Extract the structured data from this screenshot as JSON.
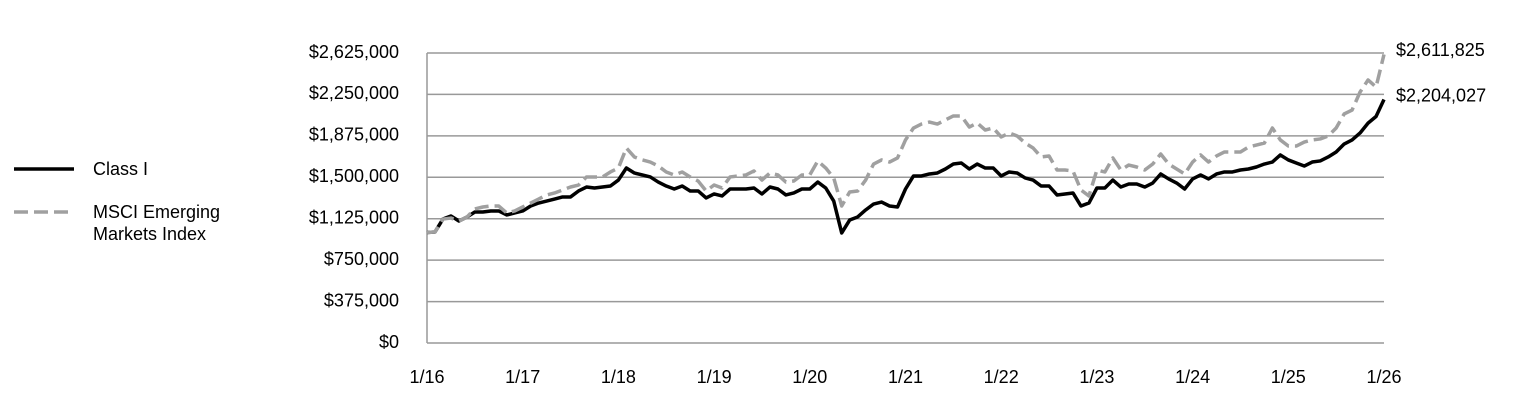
{
  "chart_data": {
    "type": "line",
    "categories": [
      "1/16",
      null,
      null,
      null,
      null,
      null,
      null,
      null,
      null,
      null,
      null,
      null,
      "1/17",
      null,
      null,
      null,
      null,
      null,
      null,
      null,
      null,
      null,
      null,
      null,
      "1/18",
      null,
      null,
      null,
      null,
      null,
      null,
      null,
      null,
      null,
      null,
      null,
      "1/19",
      null,
      null,
      null,
      null,
      null,
      null,
      null,
      null,
      null,
      null,
      null,
      "1/20",
      null,
      null,
      null,
      null,
      null,
      null,
      null,
      null,
      null,
      null,
      null,
      "1/21",
      null,
      null,
      null,
      null,
      null,
      null,
      null,
      null,
      null,
      null,
      null,
      "1/22",
      null,
      null,
      null,
      null,
      null,
      null,
      null,
      null,
      null,
      null,
      null,
      "1/23",
      null,
      null,
      null,
      null,
      null,
      null,
      null,
      null,
      null,
      null,
      null,
      "1/24",
      null,
      null,
      null,
      null,
      null,
      null,
      null,
      null,
      null,
      null,
      null,
      "1/25",
      null,
      null,
      null,
      null,
      null,
      null,
      null,
      null,
      null,
      null,
      null,
      "1/26"
    ],
    "series": [
      {
        "name": "Class I",
        "color": "#000000",
        "dash": false,
        "values": [
          1000000,
          1005000,
          1122000,
          1150000,
          1104000,
          1140000,
          1186000,
          1186000,
          1195000,
          1195000,
          1159000,
          1177000,
          1195000,
          1240000,
          1267000,
          1285000,
          1303000,
          1322000,
          1322000,
          1376000,
          1412000,
          1403000,
          1412000,
          1421000,
          1475000,
          1584000,
          1539000,
          1521000,
          1503000,
          1457000,
          1421000,
          1394000,
          1421000,
          1376000,
          1376000,
          1313000,
          1349000,
          1331000,
          1394000,
          1394000,
          1394000,
          1403000,
          1349000,
          1412000,
          1394000,
          1340000,
          1358000,
          1394000,
          1394000,
          1457000,
          1403000,
          1285000,
          996000,
          1113000,
          1141000,
          1204000,
          1258000,
          1276000,
          1240000,
          1231000,
          1394000,
          1512000,
          1512000,
          1530000,
          1539000,
          1575000,
          1620000,
          1629000,
          1575000,
          1620000,
          1584000,
          1584000,
          1512000,
          1548000,
          1539000,
          1494000,
          1475000,
          1421000,
          1421000,
          1340000,
          1349000,
          1358000,
          1240000,
          1267000,
          1403000,
          1403000,
          1475000,
          1412000,
          1439000,
          1439000,
          1412000,
          1448000,
          1530000,
          1485000,
          1448000,
          1394000,
          1485000,
          1521000,
          1485000,
          1530000,
          1548000,
          1548000,
          1566000,
          1575000,
          1593000,
          1620000,
          1638000,
          1702000,
          1657000,
          1629000,
          1602000,
          1638000,
          1648000,
          1684000,
          1729000,
          1801000,
          1838000,
          1901000,
          1990000,
          2050000,
          2204027
        ],
        "value_labels": [
          null,
          null,
          null,
          null,
          null,
          null,
          null,
          null,
          null,
          null,
          null,
          null,
          null,
          null,
          null,
          null,
          null,
          null,
          null,
          null,
          null,
          null,
          null,
          null,
          null,
          null,
          null,
          null,
          null,
          null,
          null,
          null,
          null,
          null,
          null,
          null,
          null,
          null,
          null,
          null,
          null,
          null,
          null,
          null,
          null,
          null,
          null,
          null,
          null,
          null,
          null,
          null,
          null,
          null,
          null,
          null,
          null,
          null,
          null,
          null,
          null,
          null,
          null,
          null,
          null,
          null,
          null,
          null,
          null,
          null,
          null,
          null,
          null,
          null,
          null,
          null,
          null,
          null,
          null,
          null,
          null,
          null,
          null,
          null,
          null,
          null,
          null,
          null,
          null,
          null,
          null,
          null,
          null,
          null,
          null,
          null,
          null,
          null,
          null,
          null,
          null,
          null,
          null,
          null,
          null,
          null,
          null,
          null,
          null,
          null,
          null,
          null,
          null,
          null,
          null,
          null,
          null,
          null,
          null,
          null,
          "$2,204,027"
        ]
      },
      {
        "name": "MSCI Emerging Markets Index",
        "color": "#a0a0a0",
        "dash": true,
        "values": [
          1000000,
          1005000,
          1122000,
          1131000,
          1104000,
          1140000,
          1213000,
          1231000,
          1240000,
          1240000,
          1177000,
          1195000,
          1231000,
          1267000,
          1303000,
          1340000,
          1358000,
          1385000,
          1412000,
          1430000,
          1503000,
          1503000,
          1503000,
          1548000,
          1584000,
          1765000,
          1684000,
          1657000,
          1638000,
          1602000,
          1548000,
          1521000,
          1548000,
          1503000,
          1466000,
          1376000,
          1430000,
          1403000,
          1503000,
          1512000,
          1521000,
          1557000,
          1475000,
          1539000,
          1521000,
          1457000,
          1466000,
          1521000,
          1521000,
          1648000,
          1584000,
          1494000,
          1240000,
          1367000,
          1376000,
          1475000,
          1620000,
          1657000,
          1638000,
          1675000,
          1838000,
          1946000,
          1982000,
          2000000,
          1982000,
          2019000,
          2055000,
          2055000,
          1955000,
          1991000,
          1928000,
          1946000,
          1865000,
          1901000,
          1874000,
          1810000,
          1765000,
          1684000,
          1693000,
          1566000,
          1566000,
          1557000,
          1385000,
          1331000,
          1566000,
          1548000,
          1675000,
          1566000,
          1611000,
          1593000,
          1566000,
          1620000,
          1711000,
          1620000,
          1575000,
          1530000,
          1638000,
          1702000,
          1638000,
          1693000,
          1729000,
          1729000,
          1729000,
          1774000,
          1792000,
          1810000,
          1946000,
          1838000,
          1783000,
          1783000,
          1819000,
          1838000,
          1847000,
          1874000,
          1946000,
          2073000,
          2109000,
          2272000,
          2381000,
          2317000,
          2611825
        ],
        "value_labels": [
          null,
          null,
          null,
          null,
          null,
          null,
          null,
          null,
          null,
          null,
          null,
          null,
          null,
          null,
          null,
          null,
          null,
          null,
          null,
          null,
          null,
          null,
          null,
          null,
          null,
          null,
          null,
          null,
          null,
          null,
          null,
          null,
          null,
          null,
          null,
          null,
          null,
          null,
          null,
          null,
          null,
          null,
          null,
          null,
          null,
          null,
          null,
          null,
          null,
          null,
          null,
          null,
          null,
          null,
          null,
          null,
          null,
          null,
          null,
          null,
          null,
          null,
          null,
          null,
          null,
          null,
          null,
          null,
          null,
          null,
          null,
          null,
          null,
          null,
          null,
          null,
          null,
          null,
          null,
          null,
          null,
          null,
          null,
          null,
          null,
          null,
          null,
          null,
          null,
          null,
          null,
          null,
          null,
          null,
          null,
          null,
          null,
          null,
          null,
          null,
          null,
          null,
          null,
          null,
          null,
          null,
          null,
          null,
          null,
          null,
          null,
          null,
          null,
          null,
          null,
          null,
          null,
          null,
          null,
          null,
          "$2,611,825"
        ]
      }
    ],
    "ylim": [
      0,
      2625000
    ],
    "yticks": [
      {
        "value": 0,
        "label": "$0"
      },
      {
        "value": 375000,
        "label": "$375,000"
      },
      {
        "value": 750000,
        "label": "$750,000"
      },
      {
        "value": 1125000,
        "label": "$1,125,000"
      },
      {
        "value": 1500000,
        "label": "$1,500,000"
      },
      {
        "value": 1875000,
        "label": "$1,875,000"
      },
      {
        "value": 2250000,
        "label": "$2,250,000"
      },
      {
        "value": 2625000,
        "label": "$2,625,000"
      }
    ],
    "grid": true,
    "legend": "left"
  }
}
